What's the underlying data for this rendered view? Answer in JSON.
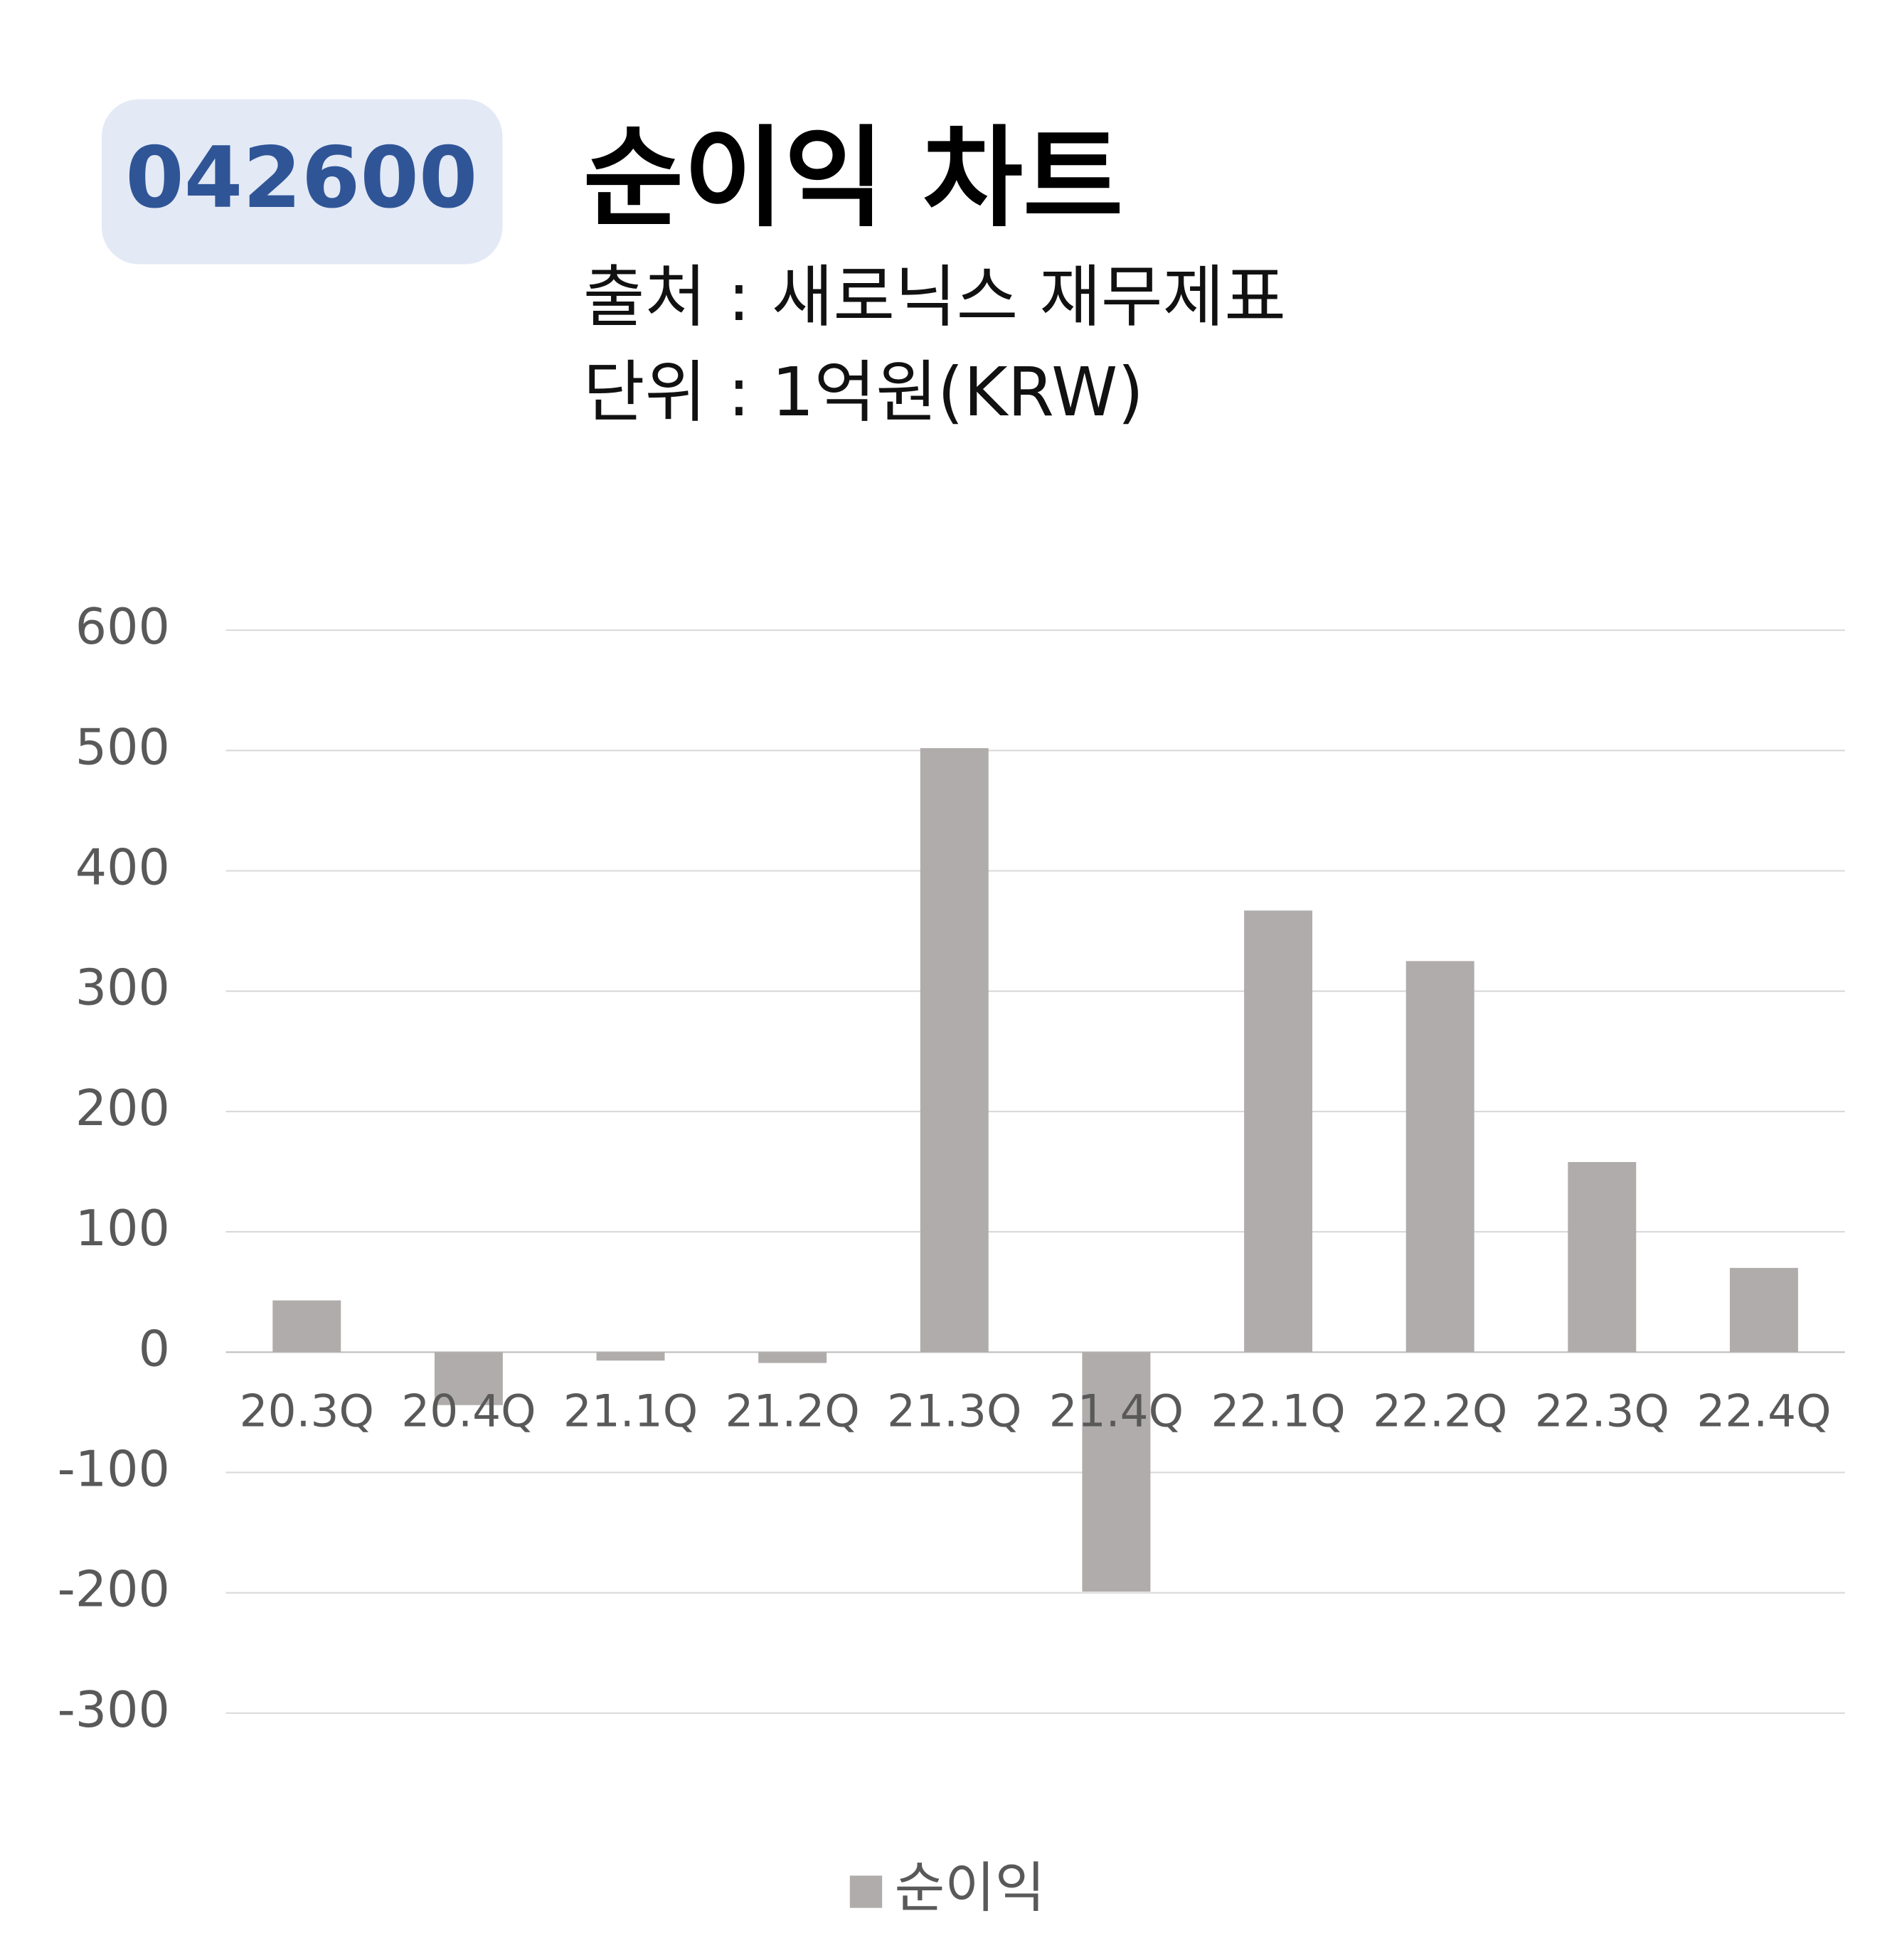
{
  "code": "042600",
  "chart_data": {
    "type": "bar",
    "title": "순이익 차트",
    "subtitle": [
      "출처 : 새로닉스 재무제표",
      "단위 : 1억원(KRW)"
    ],
    "categories": [
      "20.3Q",
      "20.4Q",
      "21.1Q",
      "21.2Q",
      "21.3Q",
      "21.4Q",
      "22.1Q",
      "22.2Q",
      "22.3Q",
      "22.4Q"
    ],
    "series": [
      {
        "name": "순이익",
        "color": "#b0acab",
        "values": [
          43,
          -44,
          -7,
          -9,
          502,
          -199,
          367,
          325,
          158,
          70
        ]
      }
    ],
    "ylim": [
      -300,
      600
    ],
    "yticks": [
      -300,
      -200,
      -100,
      0,
      100,
      200,
      300,
      400,
      500,
      600
    ],
    "grid": true,
    "legend": "bottom"
  }
}
